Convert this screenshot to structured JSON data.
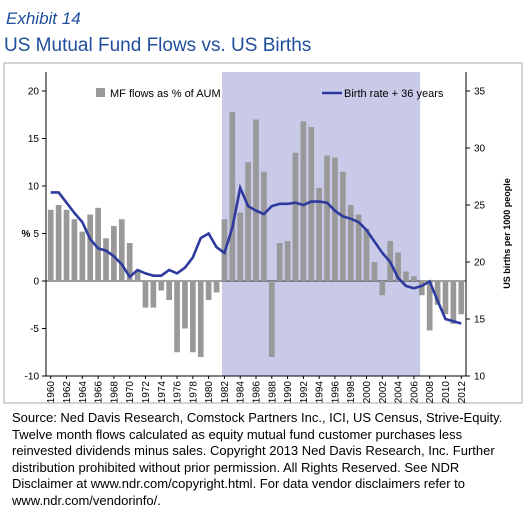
{
  "exhibit": "Exhibit 14",
  "chart_data": {
    "type": "combo",
    "title": "US Mutual Fund Flows vs. US Births",
    "ylabel": "%",
    "y2label": "US births per 1000 people",
    "x": [
      1960,
      1961,
      1962,
      1963,
      1964,
      1965,
      1966,
      1967,
      1968,
      1969,
      1970,
      1971,
      1972,
      1973,
      1974,
      1975,
      1976,
      1977,
      1978,
      1979,
      1980,
      1981,
      1982,
      1983,
      1984,
      1985,
      1986,
      1987,
      1988,
      1989,
      1990,
      1991,
      1992,
      1993,
      1994,
      1995,
      1996,
      1997,
      1998,
      1999,
      2000,
      2001,
      2002,
      2003,
      2004,
      2005,
      2006,
      2007,
      2008,
      2009,
      2010,
      2011,
      2012
    ],
    "series": [
      {
        "name": "MF flows as % of AUM",
        "type": "bar",
        "color": "#999999",
        "values": [
          7.5,
          8.0,
          7.5,
          6.5,
          5.2,
          7.0,
          7.7,
          4.5,
          5.8,
          6.5,
          4.0,
          1.0,
          -2.8,
          -2.8,
          -1.0,
          -2.0,
          -7.5,
          -5.0,
          -7.5,
          -8.0,
          -2.0,
          -1.2,
          6.5,
          17.8,
          7.2,
          12.5,
          17.0,
          11.5,
          -8.0,
          4.0,
          4.2,
          13.5,
          16.8,
          16.2,
          9.8,
          13.2,
          13.0,
          11.5,
          8.0,
          7.0,
          5.5,
          2.0,
          -1.5,
          4.2,
          3.0,
          1.0,
          0.5,
          -1.5,
          -5.2,
          -2.5,
          -3.5,
          -4.5,
          -3.5
        ]
      },
      {
        "name": "Birth rate + 36 years",
        "type": "line",
        "axis": "y2",
        "color": "#2e3a9e",
        "values": [
          26.1,
          26.1,
          25.2,
          24.3,
          23.5,
          22.0,
          21.2,
          21.0,
          20.5,
          19.8,
          18.7,
          19.3,
          19.0,
          18.8,
          18.8,
          19.3,
          19.0,
          19.5,
          20.4,
          22.1,
          22.5,
          21.3,
          20.8,
          23.0,
          26.5,
          24.9,
          24.5,
          24.2,
          24.9,
          25.1,
          25.1,
          25.2,
          25.0,
          25.3,
          25.3,
          25.2,
          24.5,
          24.0,
          23.8,
          23.5,
          22.8,
          21.8,
          20.8,
          20.0,
          18.6,
          17.9,
          17.7,
          17.9,
          18.3,
          16.6,
          15.0,
          14.8,
          14.6
        ]
      }
    ],
    "xlim": [
      1959.4,
      2012.6
    ],
    "xticks": [
      1960,
      1962,
      1964,
      1966,
      1968,
      1970,
      1972,
      1974,
      1976,
      1978,
      1980,
      1982,
      1984,
      1986,
      1988,
      1990,
      1992,
      1994,
      1996,
      1998,
      2000,
      2002,
      2004,
      2006,
      2008,
      2010,
      2012
    ],
    "ylim": [
      -10,
      20
    ],
    "yticks": [
      -10,
      -5,
      0,
      5,
      10,
      15,
      20
    ],
    "y2lim": [
      10,
      35
    ],
    "y2ticks": [
      10,
      15,
      20,
      25,
      30,
      35
    ],
    "shaded_span": [
      1981.7,
      2006.8
    ],
    "shade_color": "#c9c9e8",
    "grid": false
  },
  "source": "Source: Ned Davis Research, Comstock Partners Inc., ICI, US Census, Strive-Equity. Twelve month flows calculated as equity mutual fund customer purchases less reinvested dividends minus sales.  Copyright 2013 Ned Davis Research, Inc. Further distribution prohibited without prior permission. All Rights Reserved.  See NDR Disclaimer at www.ndr.com/copyright.html. For data vendor disclaimers refer to www.ndr.com/vendorinfo/."
}
